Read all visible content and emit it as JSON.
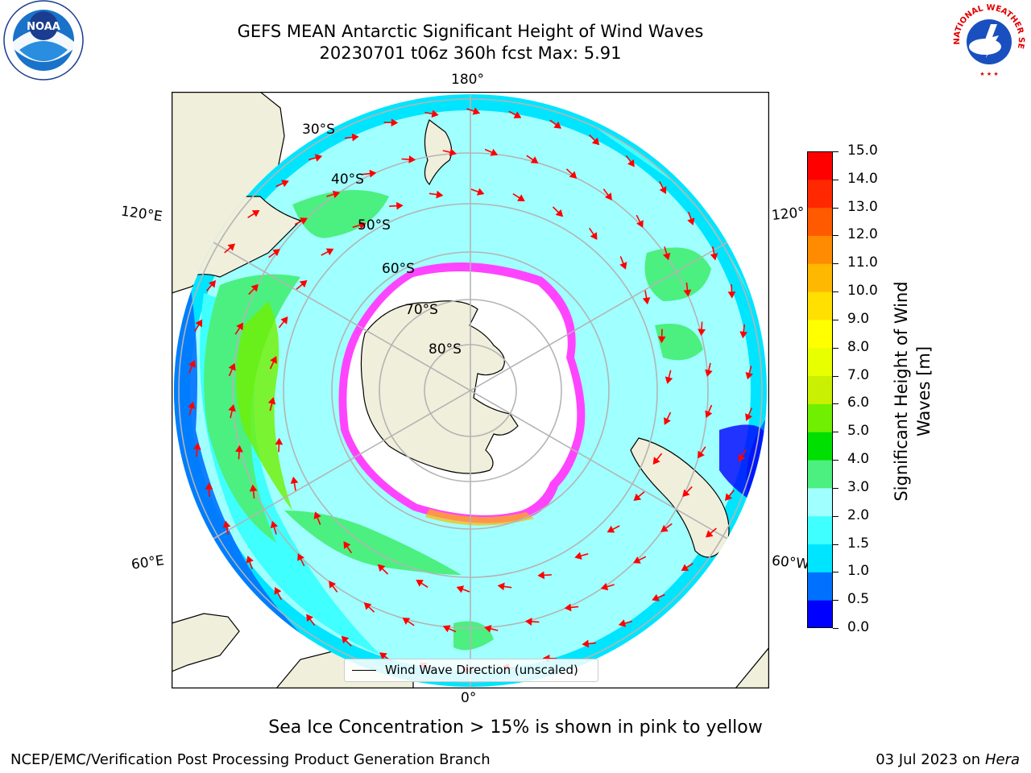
{
  "header": {
    "title_line1": "GEFS MEAN Antarctic Significant Height of Wind Waves",
    "title_line2": "20230701 t06z 360h fcst   Max: 5.91"
  },
  "logos": {
    "noaa_text": "NOAA",
    "nws_text": "NATIONAL WEATHER SERVICE"
  },
  "map": {
    "longitude_labels": {
      "top": "180°",
      "bottom": "0°",
      "left_upper": "120°E",
      "left_lower": "60°E",
      "right_upper": "120°",
      "right_lower": "60°W"
    },
    "latitude_labels": [
      "30°S",
      "40°S",
      "50°S",
      "60°S",
      "70°S",
      "80°S"
    ],
    "legend_label": "Wind Wave Direction (unscaled)",
    "colors": {
      "land": "#efefdb",
      "ocean_bg": "#ffffff",
      "sea_ice_min": "#ff44ff",
      "sea_ice_max": "#ffee00",
      "arrow": "#ff0000",
      "grid": "#b4b4b4"
    }
  },
  "colorbar": {
    "label": "Significant Height of Wind Waves [m]",
    "ticks": [
      "0.0",
      "0.5",
      "1.0",
      "1.5",
      "2.0",
      "3.0",
      "4.0",
      "5.0",
      "6.0",
      "7.0",
      "8.0",
      "9.0",
      "10.0",
      "11.0",
      "12.0",
      "13.0",
      "14.0",
      "15.0"
    ],
    "colors": [
      "#0000ff",
      "#0070ff",
      "#00e5ff",
      "#40ffff",
      "#a0ffff",
      "#4cf080",
      "#00e000",
      "#70f000",
      "#c8f000",
      "#e8ff00",
      "#ffff00",
      "#ffe000",
      "#ffb800",
      "#ff8c00",
      "#ff5a00",
      "#ff2800",
      "#ff0000"
    ]
  },
  "footer": {
    "note": "Sea Ice Concentration > 15% is shown in pink to yellow",
    "credit": "NCEP/EMC/Verification Post Processing Product Generation Branch",
    "date_prefix": "03 Jul 2023 on ",
    "machine": "Hera"
  }
}
